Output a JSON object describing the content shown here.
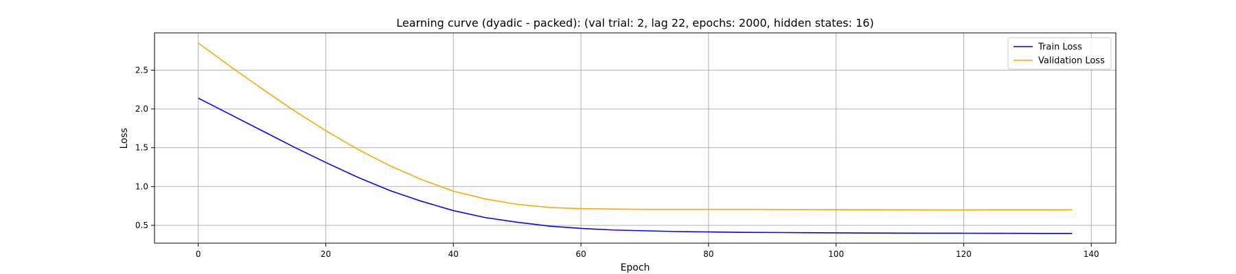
{
  "chart_data": {
    "type": "line",
    "title": "Learning curve (dyadic - packed): (val trial: 2, lag 22, epochs: 2000, hidden states: 16)",
    "xlabel": "Epoch",
    "ylabel": "Loss",
    "xlim": [
      -6.85,
      143.85
    ],
    "ylim": [
      0.27,
      2.98
    ],
    "xticks": [
      0,
      20,
      40,
      60,
      80,
      100,
      120,
      140
    ],
    "yticks": [
      0.5,
      1.0,
      1.5,
      2.0,
      2.5
    ],
    "xtick_labels": [
      "0",
      "20",
      "40",
      "60",
      "80",
      "100",
      "120",
      "140"
    ],
    "ytick_labels": [
      "0.5",
      "1.0",
      "1.5",
      "2.0",
      "2.5"
    ],
    "grid": true,
    "legend_position": "top-right",
    "x": [
      0,
      5,
      10,
      15,
      20,
      25,
      30,
      35,
      40,
      45,
      50,
      55,
      60,
      65,
      70,
      75,
      80,
      85,
      90,
      95,
      100,
      105,
      110,
      115,
      120,
      125,
      130,
      137
    ],
    "series": [
      {
        "name": "Train Loss",
        "color": "#0000ff",
        "values": [
          2.14,
          1.93,
          1.72,
          1.51,
          1.31,
          1.12,
          0.95,
          0.81,
          0.69,
          0.6,
          0.54,
          0.49,
          0.46,
          0.44,
          0.43,
          0.42,
          0.415,
          0.41,
          0.408,
          0.405,
          0.403,
          0.401,
          0.4,
          0.399,
          0.398,
          0.397,
          0.396,
          0.395
        ]
      },
      {
        "name": "Validation Loss",
        "color": "#ffa500",
        "values": [
          2.85,
          2.55,
          2.26,
          1.98,
          1.72,
          1.48,
          1.27,
          1.09,
          0.94,
          0.84,
          0.77,
          0.73,
          0.715,
          0.71,
          0.705,
          0.705,
          0.705,
          0.705,
          0.704,
          0.703,
          0.702,
          0.701,
          0.7,
          0.699,
          0.699,
          0.7,
          0.7,
          0.7
        ]
      }
    ]
  }
}
